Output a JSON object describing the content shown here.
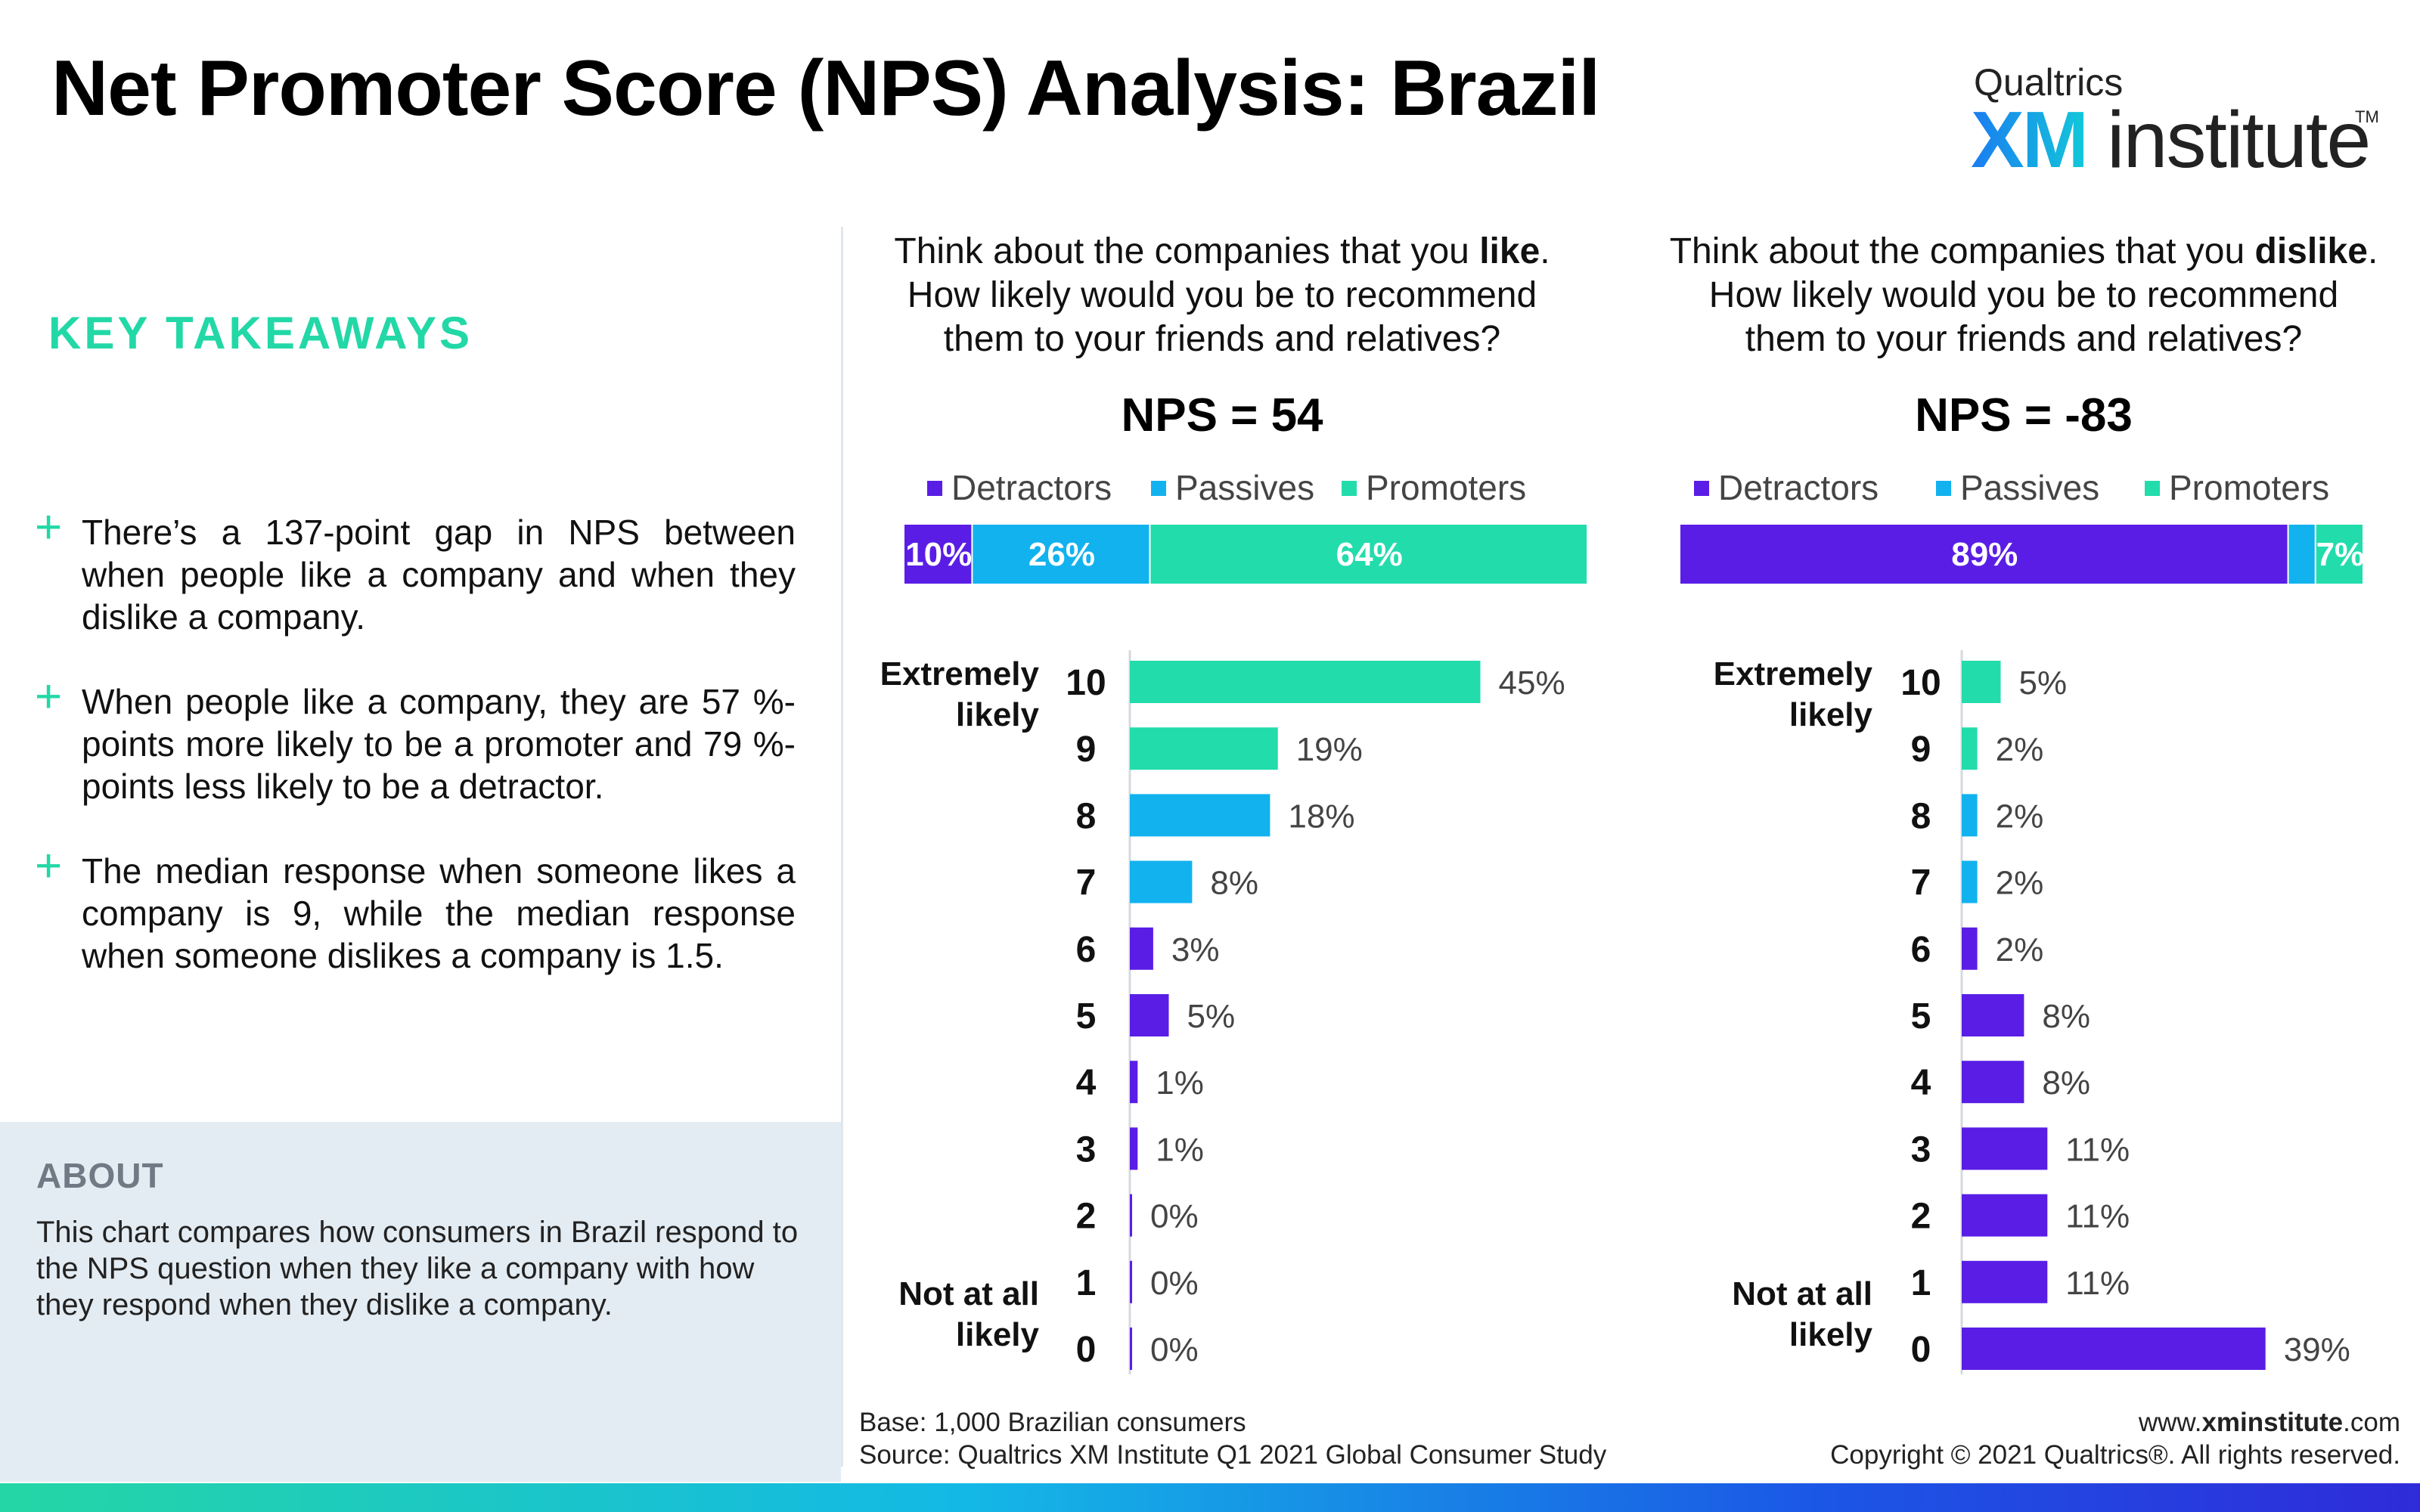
{
  "title": "Net Promoter Score (NPS) Analysis: Brazil",
  "logo": {
    "top": "Qualtrics",
    "xm": "XM",
    "institute": "institute",
    "tm": "TM"
  },
  "key_takeaways": {
    "heading": "KEY TAKEAWAYS",
    "items": [
      "There’s a 137-point gap in NPS between when people like a company and when they dislike a company.",
      "When people like a company, they are 57 %-points more likely to be a promoter and 79 %-points less likely to be a detractor.",
      "The median response when someone likes a company is 9, while the median response when someone dislikes a company is 1.5."
    ]
  },
  "about": {
    "heading": "ABOUT",
    "text": "This chart compares how consumers in Brazil respond to the NPS question when they like a company with how they respond when they dislike a company."
  },
  "footer": {
    "base": "Base: 1,000 Brazilian consumers",
    "source": "Source: Qualtrics XM Institute Q1 2021 Global Consumer Study",
    "url_prefix": "www.",
    "url_bold": "xminstitute",
    "url_suffix": ".com",
    "copyright": "Copyright © 2021 Qualtrics®. All rights reserved."
  },
  "colors": {
    "detractor": "#5a1de6",
    "passive": "#12b2ef",
    "promoter": "#22dcac",
    "accent": "#22d8a6"
  },
  "chart_data": [
    {
      "type": "bar",
      "question": [
        "Think about the companies that you |like|.",
        "How likely would you be to recommend",
        "them to your friends and relatives?"
      ],
      "nps_label": "NPS = 54",
      "legend": [
        "Detractors",
        "Passives",
        "Promoters"
      ],
      "stacked": {
        "values": [
          10,
          26,
          64
        ],
        "labels": [
          "10%",
          "26%",
          "64%"
        ]
      },
      "categories": [
        "10",
        "9",
        "8",
        "7",
        "6",
        "5",
        "4",
        "3",
        "2",
        "1",
        "0"
      ],
      "values": [
        45,
        19,
        18,
        8,
        3,
        5,
        1,
        1,
        0,
        0,
        0
      ],
      "value_labels": [
        "45%",
        "19%",
        "18%",
        "8%",
        "3%",
        "5%",
        "1%",
        "1%",
        "0%",
        "0%",
        "0%"
      ],
      "top_label": [
        "Extremely",
        "likely"
      ],
      "bottom_label": [
        "Not at all",
        "likely"
      ]
    },
    {
      "type": "bar",
      "question": [
        "Think about the companies that you |dislike|.",
        "How likely would you be to recommend",
        "them to your friends and relatives?"
      ],
      "nps_label": "NPS = -83",
      "legend": [
        "Detractors",
        "Passives",
        "Promoters"
      ],
      "stacked": {
        "values": [
          89,
          4,
          7
        ],
        "labels": [
          "89%",
          "",
          "7%"
        ]
      },
      "categories": [
        "10",
        "9",
        "8",
        "7",
        "6",
        "5",
        "4",
        "3",
        "2",
        "1",
        "0"
      ],
      "values": [
        5,
        2,
        2,
        2,
        2,
        8,
        8,
        11,
        11,
        11,
        39
      ],
      "value_labels": [
        "5%",
        "2%",
        "2%",
        "2%",
        "2%",
        "8%",
        "8%",
        "11%",
        "11%",
        "11%",
        "39%"
      ],
      "top_label": [
        "Extremely",
        "likely"
      ],
      "bottom_label": [
        "Not at all",
        "likely"
      ]
    }
  ]
}
